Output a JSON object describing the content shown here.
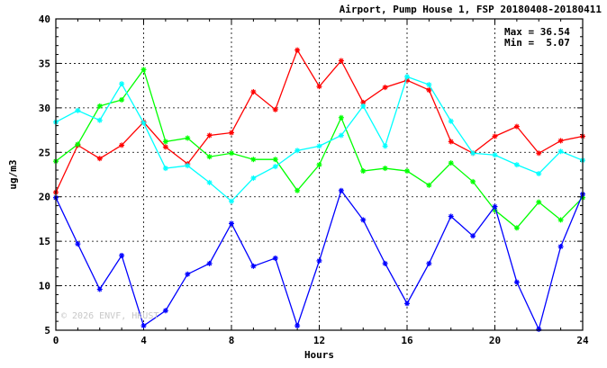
{
  "header": {
    "title": "Airport, Pump House 1, FSP 20180408-20180411"
  },
  "stats": {
    "max_label": "Max = 36.54",
    "min_label": "Min =  5.07"
  },
  "watermark": "© 2026  ENVF, HKUST",
  "chart_data": {
    "type": "line",
    "title": "Airport, Pump House 1, FSP 20180408-20180411",
    "xlabel": "Hours",
    "ylabel": "ug/m3",
    "xlim": [
      0,
      24
    ],
    "ylim": [
      5,
      40
    ],
    "xticks": [
      0,
      4,
      8,
      12,
      16,
      20,
      24
    ],
    "yticks": [
      5,
      10,
      15,
      20,
      25,
      30,
      35,
      40
    ],
    "grid": true,
    "marker": "asterisk",
    "x": [
      0,
      1,
      2,
      3,
      4,
      5,
      6,
      7,
      8,
      9,
      10,
      11,
      12,
      13,
      14,
      15,
      16,
      17,
      18,
      19,
      20,
      21,
      22,
      23,
      24
    ],
    "series": [
      {
        "color": "#ff0000",
        "values": [
          20.5,
          25.8,
          24.3,
          25.8,
          28.4,
          25.6,
          23.7,
          26.9,
          27.2,
          31.8,
          29.8,
          36.5,
          32.4,
          35.3,
          30.6,
          32.3,
          33.1,
          32.0,
          26.2,
          24.9,
          26.8,
          27.9,
          24.9,
          26.3,
          26.8
        ]
      },
      {
        "color": "#00ff00",
        "values": [
          24.0,
          25.9,
          30.2,
          30.9,
          34.3,
          26.2,
          26.6,
          24.5,
          24.9,
          24.2,
          24.2,
          20.7,
          23.6,
          28.9,
          22.9,
          23.2,
          22.9,
          21.3,
          23.8,
          21.7,
          18.5,
          16.5,
          19.4,
          17.4,
          19.9
        ]
      },
      {
        "color": "#00ffff",
        "values": [
          28.4,
          29.7,
          28.6,
          32.7,
          28.3,
          23.2,
          23.5,
          21.6,
          19.5,
          22.1,
          23.4,
          25.2,
          25.7,
          26.9,
          30.2,
          25.7,
          33.5,
          32.6,
          28.5,
          24.9,
          24.7,
          23.6,
          22.6,
          25.1,
          24.1
        ]
      },
      {
        "color": "#0000ff",
        "values": [
          19.9,
          14.7,
          9.6,
          13.4,
          5.5,
          7.2,
          11.3,
          12.5,
          17.0,
          12.2,
          13.1,
          5.5,
          12.8,
          20.7,
          17.4,
          12.5,
          8.0,
          12.5,
          17.8,
          15.6,
          18.9,
          10.4,
          5.1,
          14.4,
          20.3
        ]
      }
    ]
  }
}
